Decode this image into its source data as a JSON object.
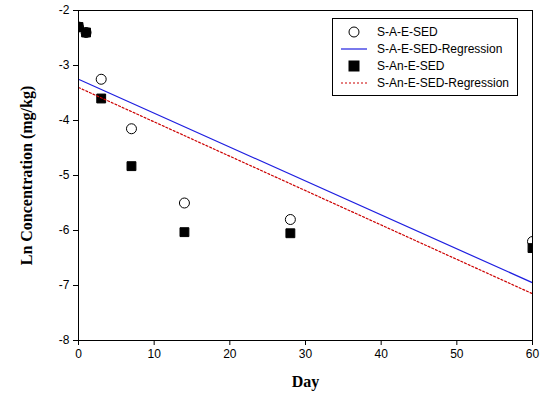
{
  "chart_data": {
    "type": "scatter",
    "x_label": "Day",
    "y_label": "Ln Concentration (mg/kg)",
    "xlim": [
      0,
      60
    ],
    "xticks": [
      0,
      10,
      20,
      30,
      40,
      50,
      60
    ],
    "ylim": [
      -8,
      -2
    ],
    "yticks": [
      -8,
      -7,
      -6,
      -5,
      -4,
      -3,
      -2
    ],
    "grid": false,
    "legend": "upper right",
    "series": [
      {
        "name": "S-A-E-SED",
        "type": "scatter",
        "marker": "circle-open",
        "color": "#000000",
        "x": [
          0,
          1,
          3,
          7,
          14,
          28,
          60
        ],
        "values": [
          -2.3,
          -2.4,
          -3.25,
          -4.15,
          -5.5,
          -5.8,
          -6.2
        ]
      },
      {
        "name": "S-A-E-SED-Regression",
        "type": "line",
        "line_style": "solid",
        "color": "#1f1fe0",
        "x": [
          0,
          60
        ],
        "values": [
          -3.25,
          -6.95
        ]
      },
      {
        "name": "S-An-E-SED",
        "type": "scatter",
        "marker": "square",
        "color": "#000000",
        "x": [
          0,
          1,
          3,
          7,
          14,
          28,
          60
        ],
        "values": [
          -2.3,
          -2.4,
          -3.6,
          -4.83,
          -6.03,
          -6.05,
          -6.32
        ]
      },
      {
        "name": "S-An-E-SED-Regression",
        "type": "line",
        "line_style": "dotted",
        "color": "#cc0000",
        "x": [
          0,
          60
        ],
        "values": [
          -3.4,
          -7.15
        ]
      }
    ]
  }
}
